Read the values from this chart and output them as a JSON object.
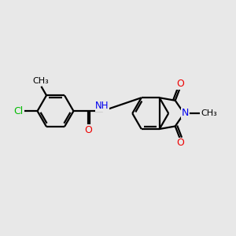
{
  "background_color": "#e8e8e8",
  "bond_color": "#000000",
  "N_color": "#0000ee",
  "O_color": "#ee0000",
  "Cl_color": "#00bb00",
  "line_width": 1.6,
  "font_size": 8.5,
  "figsize": [
    3.0,
    3.0
  ],
  "dpi": 100,
  "xlim": [
    0,
    10
  ],
  "ylim": [
    0,
    10
  ]
}
